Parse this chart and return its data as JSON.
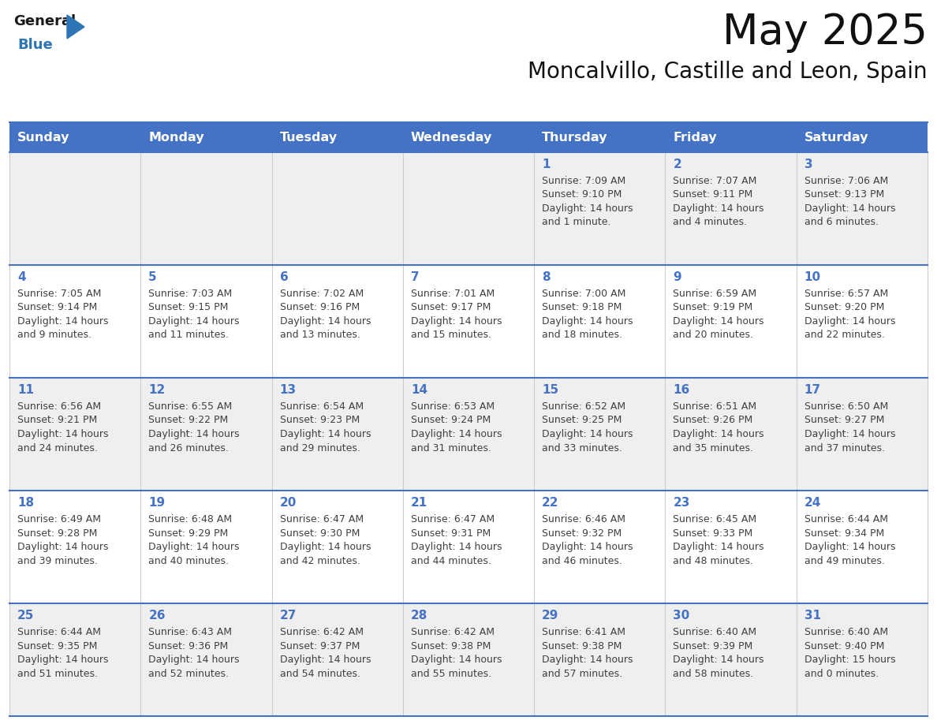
{
  "title": "May 2025",
  "subtitle": "Moncalvillo, Castille and Leon, Spain",
  "header_bg": "#4472C4",
  "header_text_color": "#FFFFFF",
  "cell_bg_odd": "#EFEFEF",
  "cell_bg_even": "#FFFFFF",
  "text_color": "#404040",
  "day_num_color": "#4472C4",
  "line_color": "#4472C4",
  "days_of_week": [
    "Sunday",
    "Monday",
    "Tuesday",
    "Wednesday",
    "Thursday",
    "Friday",
    "Saturday"
  ],
  "weeks": [
    [
      {
        "day": "",
        "lines": []
      },
      {
        "day": "",
        "lines": []
      },
      {
        "day": "",
        "lines": []
      },
      {
        "day": "",
        "lines": []
      },
      {
        "day": "1",
        "lines": [
          "Sunrise: 7:09 AM",
          "Sunset: 9:10 PM",
          "Daylight: 14 hours",
          "and 1 minute."
        ]
      },
      {
        "day": "2",
        "lines": [
          "Sunrise: 7:07 AM",
          "Sunset: 9:11 PM",
          "Daylight: 14 hours",
          "and 4 minutes."
        ]
      },
      {
        "day": "3",
        "lines": [
          "Sunrise: 7:06 AM",
          "Sunset: 9:13 PM",
          "Daylight: 14 hours",
          "and 6 minutes."
        ]
      }
    ],
    [
      {
        "day": "4",
        "lines": [
          "Sunrise: 7:05 AM",
          "Sunset: 9:14 PM",
          "Daylight: 14 hours",
          "and 9 minutes."
        ]
      },
      {
        "day": "5",
        "lines": [
          "Sunrise: 7:03 AM",
          "Sunset: 9:15 PM",
          "Daylight: 14 hours",
          "and 11 minutes."
        ]
      },
      {
        "day": "6",
        "lines": [
          "Sunrise: 7:02 AM",
          "Sunset: 9:16 PM",
          "Daylight: 14 hours",
          "and 13 minutes."
        ]
      },
      {
        "day": "7",
        "lines": [
          "Sunrise: 7:01 AM",
          "Sunset: 9:17 PM",
          "Daylight: 14 hours",
          "and 15 minutes."
        ]
      },
      {
        "day": "8",
        "lines": [
          "Sunrise: 7:00 AM",
          "Sunset: 9:18 PM",
          "Daylight: 14 hours",
          "and 18 minutes."
        ]
      },
      {
        "day": "9",
        "lines": [
          "Sunrise: 6:59 AM",
          "Sunset: 9:19 PM",
          "Daylight: 14 hours",
          "and 20 minutes."
        ]
      },
      {
        "day": "10",
        "lines": [
          "Sunrise: 6:57 AM",
          "Sunset: 9:20 PM",
          "Daylight: 14 hours",
          "and 22 minutes."
        ]
      }
    ],
    [
      {
        "day": "11",
        "lines": [
          "Sunrise: 6:56 AM",
          "Sunset: 9:21 PM",
          "Daylight: 14 hours",
          "and 24 minutes."
        ]
      },
      {
        "day": "12",
        "lines": [
          "Sunrise: 6:55 AM",
          "Sunset: 9:22 PM",
          "Daylight: 14 hours",
          "and 26 minutes."
        ]
      },
      {
        "day": "13",
        "lines": [
          "Sunrise: 6:54 AM",
          "Sunset: 9:23 PM",
          "Daylight: 14 hours",
          "and 29 minutes."
        ]
      },
      {
        "day": "14",
        "lines": [
          "Sunrise: 6:53 AM",
          "Sunset: 9:24 PM",
          "Daylight: 14 hours",
          "and 31 minutes."
        ]
      },
      {
        "day": "15",
        "lines": [
          "Sunrise: 6:52 AM",
          "Sunset: 9:25 PM",
          "Daylight: 14 hours",
          "and 33 minutes."
        ]
      },
      {
        "day": "16",
        "lines": [
          "Sunrise: 6:51 AM",
          "Sunset: 9:26 PM",
          "Daylight: 14 hours",
          "and 35 minutes."
        ]
      },
      {
        "day": "17",
        "lines": [
          "Sunrise: 6:50 AM",
          "Sunset: 9:27 PM",
          "Daylight: 14 hours",
          "and 37 minutes."
        ]
      }
    ],
    [
      {
        "day": "18",
        "lines": [
          "Sunrise: 6:49 AM",
          "Sunset: 9:28 PM",
          "Daylight: 14 hours",
          "and 39 minutes."
        ]
      },
      {
        "day": "19",
        "lines": [
          "Sunrise: 6:48 AM",
          "Sunset: 9:29 PM",
          "Daylight: 14 hours",
          "and 40 minutes."
        ]
      },
      {
        "day": "20",
        "lines": [
          "Sunrise: 6:47 AM",
          "Sunset: 9:30 PM",
          "Daylight: 14 hours",
          "and 42 minutes."
        ]
      },
      {
        "day": "21",
        "lines": [
          "Sunrise: 6:47 AM",
          "Sunset: 9:31 PM",
          "Daylight: 14 hours",
          "and 44 minutes."
        ]
      },
      {
        "day": "22",
        "lines": [
          "Sunrise: 6:46 AM",
          "Sunset: 9:32 PM",
          "Daylight: 14 hours",
          "and 46 minutes."
        ]
      },
      {
        "day": "23",
        "lines": [
          "Sunrise: 6:45 AM",
          "Sunset: 9:33 PM",
          "Daylight: 14 hours",
          "and 48 minutes."
        ]
      },
      {
        "day": "24",
        "lines": [
          "Sunrise: 6:44 AM",
          "Sunset: 9:34 PM",
          "Daylight: 14 hours",
          "and 49 minutes."
        ]
      }
    ],
    [
      {
        "day": "25",
        "lines": [
          "Sunrise: 6:44 AM",
          "Sunset: 9:35 PM",
          "Daylight: 14 hours",
          "and 51 minutes."
        ]
      },
      {
        "day": "26",
        "lines": [
          "Sunrise: 6:43 AM",
          "Sunset: 9:36 PM",
          "Daylight: 14 hours",
          "and 52 minutes."
        ]
      },
      {
        "day": "27",
        "lines": [
          "Sunrise: 6:42 AM",
          "Sunset: 9:37 PM",
          "Daylight: 14 hours",
          "and 54 minutes."
        ]
      },
      {
        "day": "28",
        "lines": [
          "Sunrise: 6:42 AM",
          "Sunset: 9:38 PM",
          "Daylight: 14 hours",
          "and 55 minutes."
        ]
      },
      {
        "day": "29",
        "lines": [
          "Sunrise: 6:41 AM",
          "Sunset: 9:38 PM",
          "Daylight: 14 hours",
          "and 57 minutes."
        ]
      },
      {
        "day": "30",
        "lines": [
          "Sunrise: 6:40 AM",
          "Sunset: 9:39 PM",
          "Daylight: 14 hours",
          "and 58 minutes."
        ]
      },
      {
        "day": "31",
        "lines": [
          "Sunrise: 6:40 AM",
          "Sunset: 9:40 PM",
          "Daylight: 15 hours",
          "and 0 minutes."
        ]
      }
    ]
  ],
  "logo_general_color": "#1a1a1a",
  "logo_blue_color": "#2E75B6",
  "logo_triangle_color": "#2E75B6",
  "title_fontsize": 38,
  "subtitle_fontsize": 20,
  "header_fontsize": 11.5,
  "day_num_fontsize": 11,
  "cell_text_fontsize": 9,
  "fig_width": 11.88,
  "fig_height": 9.18,
  "dpi": 100
}
